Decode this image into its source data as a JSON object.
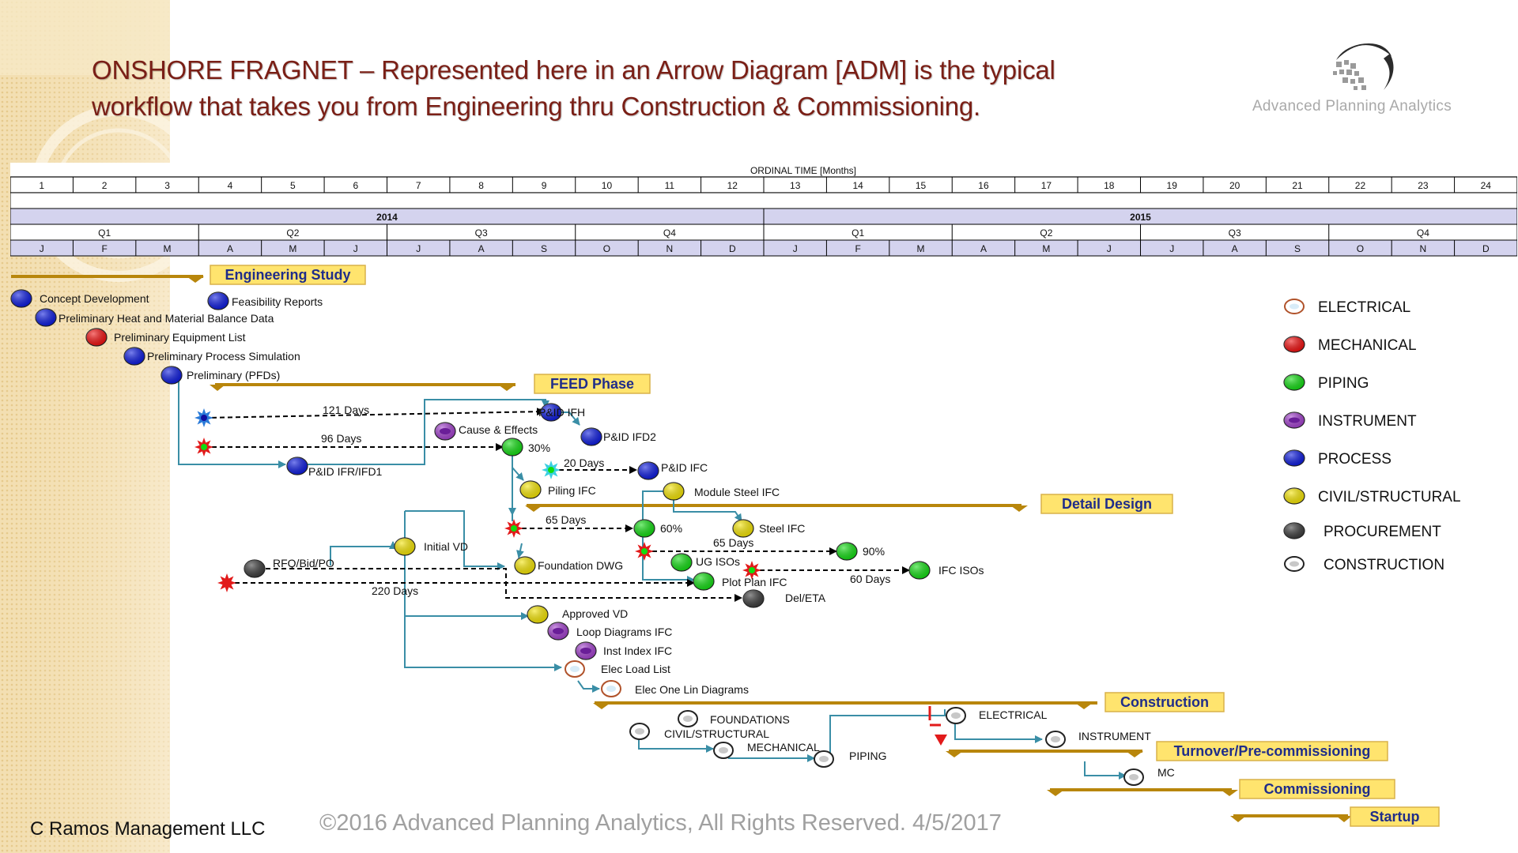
{
  "title_line1": "ONSHORE FRAGNET – Represented here in an Arrow Diagram [ADM] is the typical",
  "title_line2": "workflow that takes you from Engineering thru Construction & Commissioning.",
  "logo_text": "Advanced Planning Analytics",
  "footer": {
    "company": "C Ramos Management LLC",
    "copyright": "©2016 Advanced Planning Analytics, All Rights Reserved.    4/5/2017"
  },
  "timeline": {
    "header": "ORDINAL  TIME  [Months]",
    "months": [
      "1",
      "2",
      "3",
      "4",
      "5",
      "6",
      "7",
      "8",
      "9",
      "10",
      "11",
      "12",
      "13",
      "14",
      "15",
      "16",
      "17",
      "18",
      "19",
      "20",
      "21",
      "22",
      "23",
      "24"
    ],
    "years": [
      "2014",
      "2015"
    ],
    "quarters": [
      "Q1",
      "Q2",
      "Q3",
      "Q4",
      "Q1",
      "Q2",
      "Q3",
      "Q4"
    ],
    "month_letters": [
      "J",
      "F",
      "M",
      "A",
      "M",
      "J",
      "J",
      "A",
      "S",
      "O",
      "N",
      "D",
      "J",
      "F",
      "M",
      "A",
      "M",
      "J",
      "J",
      "A",
      "S",
      "O",
      "N",
      "D"
    ]
  },
  "colors": {
    "process": "#0a18e0",
    "mechanical": "#f20c0c",
    "piping": "#10dd10",
    "instrument": "#a33fcf",
    "civil": "#f6e600",
    "procurement": "#3a3a3a",
    "construction": "#ffffff",
    "electrical": "#d8ecf8",
    "phase_bar": "#b8860b",
    "phase_fill": "#ffe46e",
    "link": "#3a8ea6"
  },
  "legend": [
    {
      "label": "ELECTRICAL",
      "discipline": "electrical"
    },
    {
      "label": "MECHANICAL",
      "discipline": "mechanical"
    },
    {
      "label": "PIPING",
      "discipline": "piping"
    },
    {
      "label": "INSTRUMENT",
      "discipline": "instrument"
    },
    {
      "label": "PROCESS",
      "discipline": "process"
    },
    {
      "label": "CIVIL/STRUCTURAL",
      "discipline": "civil"
    },
    {
      "label": "PROCUREMENT",
      "discipline": "procurement"
    },
    {
      "label": "CONSTRUCTION",
      "discipline": "construction"
    }
  ],
  "phases": [
    {
      "id": "engineering-study",
      "label": "Engineering Study"
    },
    {
      "id": "feed-phase",
      "label": "FEED Phase"
    },
    {
      "id": "detail-design",
      "label": "Detail Design"
    },
    {
      "id": "construction",
      "label": "Construction"
    },
    {
      "id": "turnover",
      "label": "Turnover/Pre-commissioning"
    },
    {
      "id": "commissioning",
      "label": "Commissioning"
    },
    {
      "id": "startup",
      "label": "Startup"
    }
  ],
  "nodes": [
    {
      "label": "Concept Development",
      "discipline": "process"
    },
    {
      "label": "Preliminary Heat and Material Balance Data",
      "discipline": "process"
    },
    {
      "label": "Preliminary Equipment List",
      "discipline": "mechanical"
    },
    {
      "label": "Preliminary Process Simulation",
      "discipline": "process"
    },
    {
      "label": "Preliminary (PFDs)",
      "discipline": "process"
    },
    {
      "label": "Feasibility Reports",
      "discipline": "process"
    },
    {
      "label": "P&ID IFH",
      "discipline": "process"
    },
    {
      "label": "P&ID IFD2",
      "discipline": "process"
    },
    {
      "label": "P&ID IFR/IFD1",
      "discipline": "process"
    },
    {
      "label": "Cause & Effects",
      "discipline": "instrument"
    },
    {
      "label": "30%",
      "discipline": "piping"
    },
    {
      "label": "P&ID IFC",
      "discipline": "process"
    },
    {
      "label": "Piling  IFC",
      "discipline": "civil"
    },
    {
      "label": "Module Steel IFC",
      "discipline": "civil"
    },
    {
      "label": "60%",
      "discipline": "piping"
    },
    {
      "label": "Steel IFC",
      "discipline": "civil"
    },
    {
      "label": "Initial VD",
      "discipline": "civil"
    },
    {
      "label": "RFQ/Bid/PO",
      "discipline": "procurement"
    },
    {
      "label": "Foundation DWG",
      "discipline": "civil"
    },
    {
      "label": "UG ISOs",
      "discipline": "piping"
    },
    {
      "label": "90%",
      "discipline": "piping"
    },
    {
      "label": "Plot Plan IFC",
      "discipline": "piping"
    },
    {
      "label": "IFC ISOs",
      "discipline": "piping"
    },
    {
      "label": "Del/ETA",
      "discipline": "procurement"
    },
    {
      "label": "Approved VD",
      "discipline": "civil"
    },
    {
      "label": "Loop Diagrams IFC",
      "discipline": "instrument"
    },
    {
      "label": "Inst Index IFC",
      "discipline": "instrument"
    },
    {
      "label": "Elec Load List",
      "discipline": "electrical"
    },
    {
      "label": "Elec One Lin Diagrams",
      "discipline": "electrical"
    },
    {
      "label": "FOUNDATIONS",
      "discipline": "construction"
    },
    {
      "label": "CIVIL/STRUCTURAL",
      "discipline": "construction"
    },
    {
      "label": "MECHANICAL",
      "discipline": "construction"
    },
    {
      "label": "PIPING",
      "discipline": "construction"
    },
    {
      "label": "ELECTRICAL",
      "discipline": "construction"
    },
    {
      "label": "INSTRUMENT",
      "discipline": "construction"
    },
    {
      "label": "MC",
      "discipline": "construction"
    }
  ],
  "durations": [
    "121 Days",
    "96 Days",
    "20 Days",
    "65 Days",
    "65 Days",
    "220 Days",
    "60 Days"
  ]
}
